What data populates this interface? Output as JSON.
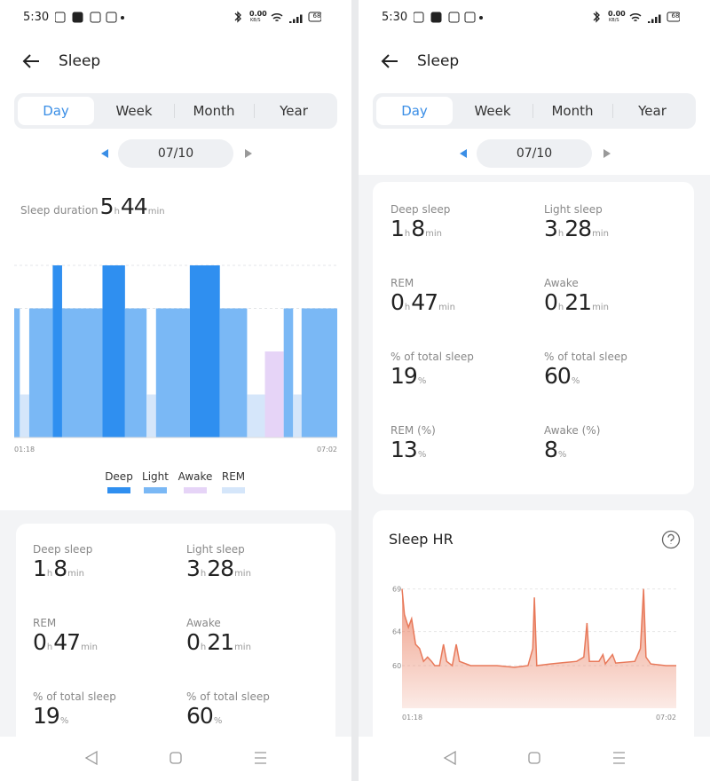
{
  "units": {
    "hours": "h",
    "minutes": "min",
    "percent": "%"
  },
  "screens": [
    {
      "status": {
        "time": "5:30",
        "net_speed": "0.00",
        "net_unit": "KB/S",
        "battery": "68"
      },
      "title": "Sleep",
      "tabs": [
        "Day",
        "Week",
        "Month",
        "Year"
      ],
      "date": "07/10",
      "duration": {
        "label": "Sleep duration",
        "hours": 5,
        "minutes": 44
      },
      "stage_chart": {
        "type": "bar",
        "xlim": [
          0,
          344
        ],
        "x_labels": [
          "01:18",
          "07:02"
        ],
        "stages": [
          {
            "name": "Deep",
            "color": "#2f8ff0"
          },
          {
            "name": "Light",
            "color": "#7ab8f5"
          },
          {
            "name": "Awake",
            "color": "#e6d4f7"
          },
          {
            "name": "REM",
            "color": "#d5e6fa"
          }
        ],
        "segments": [
          {
            "stage": "Light",
            "start": 0,
            "end": 6
          },
          {
            "stage": "REM",
            "start": 6,
            "end": 16
          },
          {
            "stage": "Light",
            "start": 16,
            "end": 41
          },
          {
            "stage": "Deep",
            "start": 41,
            "end": 51
          },
          {
            "stage": "Light",
            "start": 51,
            "end": 94
          },
          {
            "stage": "Deep",
            "start": 94,
            "end": 118
          },
          {
            "stage": "Light",
            "start": 118,
            "end": 141
          },
          {
            "stage": "REM",
            "start": 141,
            "end": 151
          },
          {
            "stage": "Light",
            "start": 151,
            "end": 187
          },
          {
            "stage": "Deep",
            "start": 187,
            "end": 219
          },
          {
            "stage": "Light",
            "start": 219,
            "end": 248
          },
          {
            "stage": "REM",
            "start": 248,
            "end": 267
          },
          {
            "stage": "Awake",
            "start": 267,
            "end": 287
          },
          {
            "stage": "Light",
            "start": 287,
            "end": 297
          },
          {
            "stage": "REM",
            "start": 297,
            "end": 306
          },
          {
            "stage": "Light",
            "start": 306,
            "end": 344
          }
        ]
      },
      "stats": [
        {
          "label": "Deep sleep",
          "hours": 1,
          "minutes": 8
        },
        {
          "label": "Light sleep",
          "hours": 3,
          "minutes": 28
        },
        {
          "label": "REM",
          "hours": 0,
          "minutes": 47
        },
        {
          "label": "Awake",
          "hours": 0,
          "minutes": 21
        },
        {
          "label": "% of total sleep",
          "percent": 19
        },
        {
          "label": "% of total sleep",
          "percent": 60
        }
      ]
    },
    {
      "status": {
        "time": "5:30",
        "net_speed": "0.00",
        "net_unit": "KB/S",
        "battery": "68"
      },
      "title": "Sleep",
      "tabs": [
        "Day",
        "Week",
        "Month",
        "Year"
      ],
      "date": "07/10",
      "stats": [
        {
          "label": "Deep sleep",
          "hours": 1,
          "minutes": 8
        },
        {
          "label": "Light sleep",
          "hours": 3,
          "minutes": 28
        },
        {
          "label": "REM",
          "hours": 0,
          "minutes": 47
        },
        {
          "label": "Awake",
          "hours": 0,
          "minutes": 21
        },
        {
          "label": "% of total sleep",
          "percent": 19
        },
        {
          "label": "% of total sleep",
          "percent": 60
        },
        {
          "label": "REM (%)",
          "percent": 13
        },
        {
          "label": "Awake (%)",
          "percent": 8
        }
      ],
      "hr_chart": {
        "type": "line",
        "title": "Sleep HR",
        "color": "#e8795a",
        "xlim": [
          0,
          344
        ],
        "x_labels": [
          "01:18",
          "07:02"
        ],
        "ylim": [
          55,
          70
        ],
        "yticks": [
          60,
          64,
          69
        ],
        "x": [
          0,
          3,
          8,
          12,
          17,
          22,
          27,
          32,
          37,
          41,
          47,
          52,
          56,
          63,
          68,
          72,
          86,
          119,
          141,
          158,
          164,
          166,
          169,
          186,
          219,
          228,
          232,
          235,
          247,
          252,
          255,
          264,
          268,
          292,
          299,
          303,
          306,
          312,
          331,
          344
        ],
        "values": [
          69,
          66,
          64.5,
          65.5,
          62.5,
          62,
          60.5,
          61,
          60.5,
          60,
          60,
          62.5,
          60.5,
          60,
          62.5,
          60.5,
          60,
          60,
          59.8,
          60,
          62,
          68,
          60,
          60.2,
          60.5,
          61,
          65,
          60.5,
          60.5,
          61.3,
          60.2,
          61.3,
          60.3,
          60.5,
          62,
          69,
          61,
          60.2,
          60,
          60
        ]
      }
    }
  ]
}
